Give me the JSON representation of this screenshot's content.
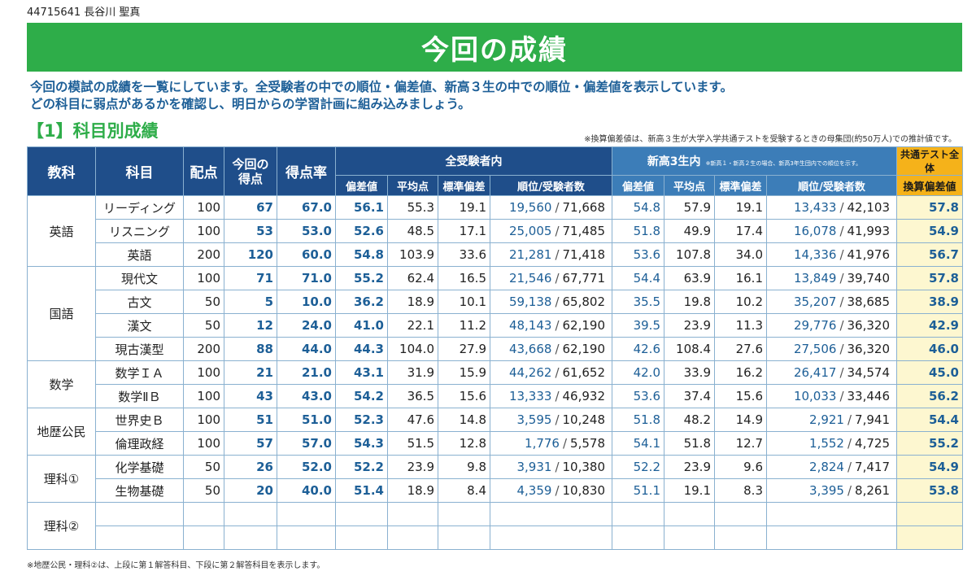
{
  "student": "44715641 長谷川 聖真",
  "title": "今回の成績",
  "intro": [
    "今回の模試の成績を一覧にしています。全受験者の中での順位・偏差値、新高３生の中での順位・偏差値を表示しています。",
    "どの科目に弱点があるかを確認し、明日からの学習計画に組み込みましょう。"
  ],
  "section": "【1】科目別成績",
  "note_top": "※換算偏差値は、新高３生が大学入学共通テストを受験するときの母集団(約50万人)での推計値です。",
  "note_bottom": "※地歴公民・理科②は、上段に第１解答科目、下段に第２解答科目を表示します。",
  "headers": {
    "kyoka": "教科",
    "kamoku": "科目",
    "haiten": "配点",
    "score": "今回の得点",
    "rate": "得点率",
    "all": "全受験者内",
    "new3": "新高3生内",
    "new3_note": "※新高１・新高２生の場合、新高3年生団内での順位を示す。",
    "kyotsu": "共通テスト全体",
    "kansan": "換算偏差値",
    "hensa": "偏差値",
    "avg": "平均点",
    "sd": "標準偏差",
    "rank": "順位/受験者数"
  },
  "groups": [
    {
      "kyoka": "英語",
      "rows": [
        {
          "kamoku": "リーディング",
          "haiten": "100",
          "score": "67",
          "rate": "67.0",
          "a_hensa": "56.1",
          "a_avg": "55.3",
          "a_sd": "19.1",
          "a_rank": "19,560",
          "a_total": "71,668",
          "n_hensa": "54.8",
          "n_avg": "57.9",
          "n_sd": "19.1",
          "n_rank": "13,433",
          "n_total": "42,103",
          "kansan": "57.8"
        },
        {
          "kamoku": "リスニング",
          "haiten": "100",
          "score": "53",
          "rate": "53.0",
          "a_hensa": "52.6",
          "a_avg": "48.5",
          "a_sd": "17.1",
          "a_rank": "25,005",
          "a_total": "71,485",
          "n_hensa": "51.8",
          "n_avg": "49.9",
          "n_sd": "17.4",
          "n_rank": "16,078",
          "n_total": "41,993",
          "kansan": "54.9"
        },
        {
          "kamoku": "英語",
          "haiten": "200",
          "score": "120",
          "rate": "60.0",
          "a_hensa": "54.8",
          "a_avg": "103.9",
          "a_sd": "33.6",
          "a_rank": "21,281",
          "a_total": "71,418",
          "n_hensa": "53.6",
          "n_avg": "107.8",
          "n_sd": "34.0",
          "n_rank": "14,336",
          "n_total": "41,976",
          "kansan": "56.7"
        }
      ]
    },
    {
      "kyoka": "国語",
      "rows": [
        {
          "kamoku": "現代文",
          "haiten": "100",
          "score": "71",
          "rate": "71.0",
          "a_hensa": "55.2",
          "a_avg": "62.4",
          "a_sd": "16.5",
          "a_rank": "21,546",
          "a_total": "67,771",
          "n_hensa": "54.4",
          "n_avg": "63.9",
          "n_sd": "16.1",
          "n_rank": "13,849",
          "n_total": "39,740",
          "kansan": "57.8"
        },
        {
          "kamoku": "古文",
          "haiten": "50",
          "score": "5",
          "rate": "10.0",
          "a_hensa": "36.2",
          "a_avg": "18.9",
          "a_sd": "10.1",
          "a_rank": "59,138",
          "a_total": "65,802",
          "n_hensa": "35.5",
          "n_avg": "19.8",
          "n_sd": "10.2",
          "n_rank": "35,207",
          "n_total": "38,685",
          "kansan": "38.9"
        },
        {
          "kamoku": "漢文",
          "haiten": "50",
          "score": "12",
          "rate": "24.0",
          "a_hensa": "41.0",
          "a_avg": "22.1",
          "a_sd": "11.2",
          "a_rank": "48,143",
          "a_total": "62,190",
          "n_hensa": "39.5",
          "n_avg": "23.9",
          "n_sd": "11.3",
          "n_rank": "29,776",
          "n_total": "36,320",
          "kansan": "42.9"
        },
        {
          "kamoku": "現古漢型",
          "haiten": "200",
          "score": "88",
          "rate": "44.0",
          "a_hensa": "44.3",
          "a_avg": "104.0",
          "a_sd": "27.9",
          "a_rank": "43,668",
          "a_total": "62,190",
          "n_hensa": "42.6",
          "n_avg": "108.4",
          "n_sd": "27.6",
          "n_rank": "27,506",
          "n_total": "36,320",
          "kansan": "46.0"
        }
      ]
    },
    {
      "kyoka": "数学",
      "rows": [
        {
          "kamoku": "数学ＩＡ",
          "haiten": "100",
          "score": "21",
          "rate": "21.0",
          "a_hensa": "43.1",
          "a_avg": "31.9",
          "a_sd": "15.9",
          "a_rank": "44,262",
          "a_total": "61,652",
          "n_hensa": "42.0",
          "n_avg": "33.9",
          "n_sd": "16.2",
          "n_rank": "26,417",
          "n_total": "34,574",
          "kansan": "45.0"
        },
        {
          "kamoku": "数学ⅡＢ",
          "haiten": "100",
          "score": "43",
          "rate": "43.0",
          "a_hensa": "54.2",
          "a_avg": "36.5",
          "a_sd": "15.6",
          "a_rank": "13,333",
          "a_total": "46,932",
          "n_hensa": "53.6",
          "n_avg": "37.4",
          "n_sd": "15.6",
          "n_rank": "10,033",
          "n_total": "33,446",
          "kansan": "56.2"
        }
      ]
    },
    {
      "kyoka": "地歴公民",
      "rows": [
        {
          "kamoku": "世界史Ｂ",
          "haiten": "100",
          "score": "51",
          "rate": "51.0",
          "a_hensa": "52.3",
          "a_avg": "47.6",
          "a_sd": "14.8",
          "a_rank": "3,595",
          "a_total": "10,248",
          "n_hensa": "51.8",
          "n_avg": "48.2",
          "n_sd": "14.9",
          "n_rank": "2,921",
          "n_total": "7,941",
          "kansan": "54.4"
        },
        {
          "kamoku": "倫理政経",
          "haiten": "100",
          "score": "57",
          "rate": "57.0",
          "a_hensa": "54.3",
          "a_avg": "51.5",
          "a_sd": "12.8",
          "a_rank": "1,776",
          "a_total": "5,578",
          "n_hensa": "54.1",
          "n_avg": "51.8",
          "n_sd": "12.7",
          "n_rank": "1,552",
          "n_total": "4,725",
          "kansan": "55.2"
        }
      ]
    },
    {
      "kyoka": "理科①",
      "rows": [
        {
          "kamoku": "化学基礎",
          "haiten": "50",
          "score": "26",
          "rate": "52.0",
          "a_hensa": "52.2",
          "a_avg": "23.9",
          "a_sd": "9.8",
          "a_rank": "3,931",
          "a_total": "10,380",
          "n_hensa": "52.2",
          "n_avg": "23.9",
          "n_sd": "9.6",
          "n_rank": "2,824",
          "n_total": "7,417",
          "kansan": "54.9"
        },
        {
          "kamoku": "生物基礎",
          "haiten": "50",
          "score": "20",
          "rate": "40.0",
          "a_hensa": "51.4",
          "a_avg": "18.9",
          "a_sd": "8.4",
          "a_rank": "4,359",
          "a_total": "10,830",
          "n_hensa": "51.1",
          "n_avg": "19.1",
          "n_sd": "8.3",
          "n_rank": "3,395",
          "n_total": "8,261",
          "kansan": "53.8"
        }
      ]
    },
    {
      "kyoka": "理科②",
      "rows": []
    }
  ]
}
